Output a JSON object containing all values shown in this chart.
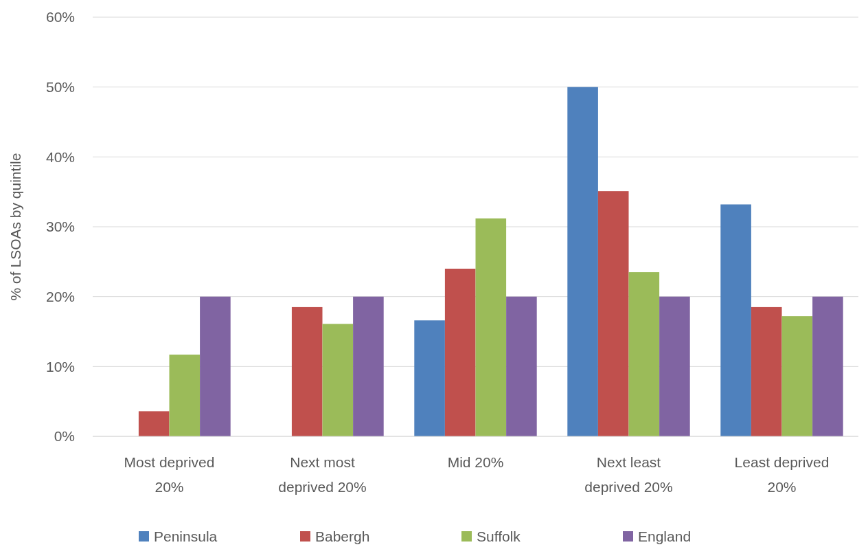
{
  "chart_data": {
    "type": "bar",
    "ylabel": "% of LSOAs by quintile",
    "categories": [
      "Most deprived 20%",
      "Next most deprived 20%",
      "Mid 20%",
      "Next least deprived 20%",
      "Least deprived 20%"
    ],
    "series": [
      {
        "name": "Peninsula",
        "color": "#4f81bd",
        "values": [
          0,
          0,
          16.6,
          50,
          33.2
        ]
      },
      {
        "name": "Babergh",
        "color": "#c0504d",
        "values": [
          3.6,
          18.5,
          24.0,
          35.1,
          18.5
        ]
      },
      {
        "name": "Suffolk",
        "color": "#9bbb59",
        "values": [
          11.7,
          16.1,
          31.2,
          23.5,
          17.2
        ]
      },
      {
        "name": "England",
        "color": "#8064a2",
        "values": [
          20,
          20,
          20,
          20,
          20
        ]
      }
    ],
    "ylim": [
      0,
      60
    ],
    "yticks": [
      {
        "value": 0,
        "label": "0%"
      },
      {
        "value": 10,
        "label": "10%"
      },
      {
        "value": 20,
        "label": "20%"
      },
      {
        "value": 30,
        "label": "30%"
      },
      {
        "value": 40,
        "label": "40%"
      },
      {
        "value": 50,
        "label": "50%"
      },
      {
        "value": 60,
        "label": "60%"
      }
    ],
    "grid": "y",
    "legend": "bottom"
  }
}
